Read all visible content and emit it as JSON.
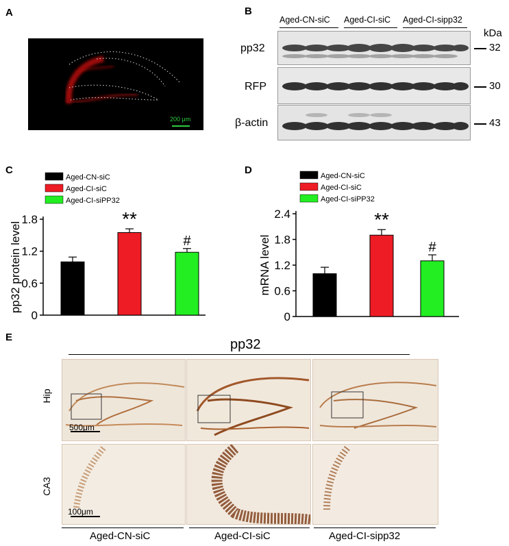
{
  "panels": {
    "A": "A",
    "B": "B",
    "C": "C",
    "D": "D",
    "E": "E"
  },
  "panel_a": {
    "scalebar": "200 μm"
  },
  "panel_b": {
    "groups": [
      "Aged-CN-siC",
      "Aged-CI-siC",
      "Aged-CI-sipp32"
    ],
    "unit": "kDa",
    "rows": [
      {
        "label": "pp32",
        "marker": "32"
      },
      {
        "label": "RFP",
        "marker": "30"
      },
      {
        "label": "β-actin",
        "marker": "43"
      }
    ]
  },
  "chart_data": [
    {
      "panel": "C",
      "type": "bar",
      "categories": [
        "Aged-CN-siC",
        "Aged-CI-siC",
        "Aged-CI-siPP32"
      ],
      "values": [
        1.0,
        1.55,
        1.18
      ],
      "errors": [
        0.09,
        0.07,
        0.07
      ],
      "annotations": [
        "",
        "**",
        "#"
      ],
      "colors": [
        "#000000",
        "#ee1c25",
        "#22ee22"
      ],
      "legend": [
        "Aged-CN-siC",
        "Aged-CI-siC",
        "Aged-CI-siPP32"
      ],
      "ylabel": "pp32 protein level",
      "ylim": [
        0,
        1.8
      ],
      "yticks": [
        "0",
        "0.6",
        "1.2",
        "1.8"
      ],
      "legend_position": "top-left"
    },
    {
      "panel": "D",
      "type": "bar",
      "categories": [
        "Aged-CN-siC",
        "Aged-CI-siC",
        "Aged-CI-siPP32"
      ],
      "values": [
        1.0,
        1.9,
        1.3
      ],
      "errors": [
        0.15,
        0.13,
        0.14
      ],
      "annotations": [
        "",
        "**",
        "#"
      ],
      "colors": [
        "#000000",
        "#ee1c25",
        "#22ee22"
      ],
      "legend": [
        "Aged-CN-siC",
        "Aged-CI-siC",
        "Aged-CI-siPP32"
      ],
      "ylabel": "mRNA level",
      "ylim": [
        0,
        2.4
      ],
      "yticks": [
        "0",
        "0.6",
        "1.2",
        "1.8",
        "2.4"
      ],
      "legend_position": "top-left"
    }
  ],
  "panel_e": {
    "title": "pp32",
    "rows": [
      "Hip",
      "CA3"
    ],
    "scalebars": [
      "500μm",
      "100μm"
    ],
    "groups": [
      "Aged-CN-siC",
      "Aged-CI-siC",
      "Aged-CI-sipp32"
    ]
  }
}
